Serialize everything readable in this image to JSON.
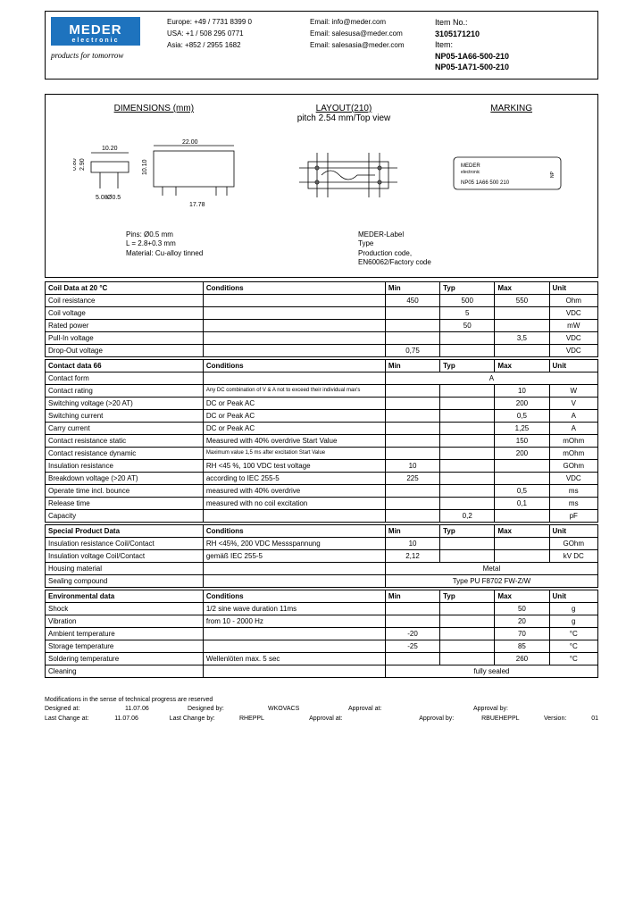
{
  "header": {
    "logo_main": "MEDER",
    "logo_sub": "electronic",
    "slogan": "products for tomorrow",
    "contacts": [
      {
        "region": "Europe:",
        "phone": "+49 / 7731 8399 0",
        "email_label": "Email:",
        "email": "info@meder.com"
      },
      {
        "region": "USA:",
        "phone": "+1 / 508 295 0771",
        "email_label": "Email:",
        "email": "salesusa@meder.com"
      },
      {
        "region": "Asia:",
        "phone": "+852 / 2955 1682",
        "email_label": "Email:",
        "email": "salesasia@meder.com"
      }
    ],
    "item_no_label": "Item No.:",
    "item_no": "3105171210",
    "item_label": "Item:",
    "item1": "NP05-1A66-500-210",
    "item2": "NP05-1A71-500-210"
  },
  "diagram": {
    "dim_title": "DIMENSIONS (mm)",
    "layout_title": "LAYOUT(210)",
    "layout_sub": "pitch 2.54 mm/Top view",
    "marking_title": "MARKING",
    "dims": {
      "w1": "10.20",
      "w2": "22.00",
      "h1": "0.80",
      "h2": "2.90",
      "h3": "10.10",
      "p1": "5.08",
      "p2": "Ø0.5",
      "p3": "17.78"
    },
    "pins_note1": "Pins: Ø0.5 mm",
    "pins_note2": "L = 2.8+0.3 mm",
    "pins_note3": "Material: Cu-alloy tinned",
    "marking_box1": "MEDER",
    "marking_box2": "electronic",
    "marking_box3": "NP05 1A66 500 210",
    "marking_note1": "MEDER-Label",
    "marking_note2": "Type",
    "marking_note3": "Production code,",
    "marking_note4": "EN60062/Factory code"
  },
  "tables": [
    {
      "title": "Coil Data at 20 °C",
      "rows": [
        {
          "p": "Coil resistance",
          "c": "",
          "min": "450",
          "typ": "500",
          "max": "550",
          "u": "Ohm"
        },
        {
          "p": "Coil voltage",
          "c": "",
          "min": "",
          "typ": "5",
          "max": "",
          "u": "VDC"
        },
        {
          "p": "Rated power",
          "c": "",
          "min": "",
          "typ": "50",
          "max": "",
          "u": "mW"
        },
        {
          "p": "Pull-In voltage",
          "c": "",
          "min": "",
          "typ": "",
          "max": "3,5",
          "u": "VDC"
        },
        {
          "p": "Drop-Out voltage",
          "c": "",
          "min": "0,75",
          "typ": "",
          "max": "",
          "u": "VDC"
        }
      ]
    },
    {
      "title": "Contact data  66",
      "rows": [
        {
          "p": "Contact form",
          "c": "",
          "span": "A"
        },
        {
          "p": "Contact rating",
          "c": "Any DC combination of V & A not to exceed their individual max's",
          "min": "",
          "typ": "",
          "max": "10",
          "u": "W"
        },
        {
          "p": "Switching voltage (>20 AT)",
          "c": "DC or Peak AC",
          "min": "",
          "typ": "",
          "max": "200",
          "u": "V"
        },
        {
          "p": "Switching current",
          "c": "DC or Peak AC",
          "min": "",
          "typ": "",
          "max": "0,5",
          "u": "A"
        },
        {
          "p": "Carry current",
          "c": "DC or Peak AC",
          "min": "",
          "typ": "",
          "max": "1,25",
          "u": "A"
        },
        {
          "p": "Contact resistance static",
          "c": "Measured with 40% overdrive Start Value",
          "min": "",
          "typ": "",
          "max": "150",
          "u": "mOhm"
        },
        {
          "p": "Contact resistance dynamic",
          "c": "Maximum value 1,5 ms after excitation Start Value",
          "min": "",
          "typ": "",
          "max": "200",
          "u": "mOhm"
        },
        {
          "p": "Insulation resistance",
          "c": "RH <45 %, 100 VDC test voltage",
          "min": "10",
          "typ": "",
          "max": "",
          "u": "GOhm"
        },
        {
          "p": "Breakdown voltage (>20 AT)",
          "c": "according to IEC 255-5",
          "min": "225",
          "typ": "",
          "max": "",
          "u": "VDC"
        },
        {
          "p": "Operate time incl. bounce",
          "c": "measured with 40% overdrive",
          "min": "",
          "typ": "",
          "max": "0,5",
          "u": "ms"
        },
        {
          "p": "Release time",
          "c": "measured with no coil excitation",
          "min": "",
          "typ": "",
          "max": "0,1",
          "u": "ms"
        },
        {
          "p": "Capacity",
          "c": "",
          "min": "",
          "typ": "0,2",
          "max": "",
          "u": "pF"
        }
      ]
    },
    {
      "title": "Special Product Data",
      "rows": [
        {
          "p": "Insulation resistance Coil/Contact",
          "c": "RH <45%, 200 VDC Messspannung",
          "min": "10",
          "typ": "",
          "max": "",
          "u": "GOhm"
        },
        {
          "p": "Insulation voltage Coil/Contact",
          "c": "gemäß IEC 255-5",
          "min": "2,12",
          "typ": "",
          "max": "",
          "u": "kV DC"
        },
        {
          "p": "Housing material",
          "c": "",
          "span": "Metal"
        },
        {
          "p": "Sealing compound",
          "c": "",
          "span": "Type PU F8702 FW-Z/W"
        }
      ]
    },
    {
      "title": "Environmental data",
      "rows": [
        {
          "p": "Shock",
          "c": "1/2 sine wave duration 11ms",
          "min": "",
          "typ": "",
          "max": "50",
          "u": "g"
        },
        {
          "p": "Vibration",
          "c": "from  10 - 2000 Hz",
          "min": "",
          "typ": "",
          "max": "20",
          "u": "g"
        },
        {
          "p": "Ambient temperature",
          "c": "",
          "min": "-20",
          "typ": "",
          "max": "70",
          "u": "°C"
        },
        {
          "p": "Storage temperature",
          "c": "",
          "min": "-25",
          "typ": "",
          "max": "85",
          "u": "°C"
        },
        {
          "p": "Soldering temperature",
          "c": "Wellenlöten max. 5 sec",
          "min": "",
          "typ": "",
          "max": "260",
          "u": "°C"
        },
        {
          "p": "Cleaning",
          "c": "",
          "span": "fully sealed"
        }
      ]
    }
  ],
  "table_headers": {
    "cond": "Conditions",
    "min": "Min",
    "typ": "Typ",
    "max": "Max",
    "unit": "Unit"
  },
  "footer": {
    "mod": "Modifications in the sense of technical progress are reserved",
    "r1": {
      "a": "Designed at:",
      "av": "11.07.06",
      "b": "Designed by:",
      "bv": "WKOVACS",
      "c": "Approval at:",
      "cv": "",
      "d": "Approval by:",
      "dv": ""
    },
    "r2": {
      "a": "Last Change at:",
      "av": "11.07.06",
      "b": "Last Change by:",
      "bv": "RHEPPL",
      "c": "Approval at:",
      "cv": "",
      "d": "Approval by:",
      "dv": "RBUEHEPPL",
      "e": "Version:",
      "ev": "01"
    }
  },
  "colors": {
    "logo_bg": "#1e73be",
    "border": "#000000"
  }
}
